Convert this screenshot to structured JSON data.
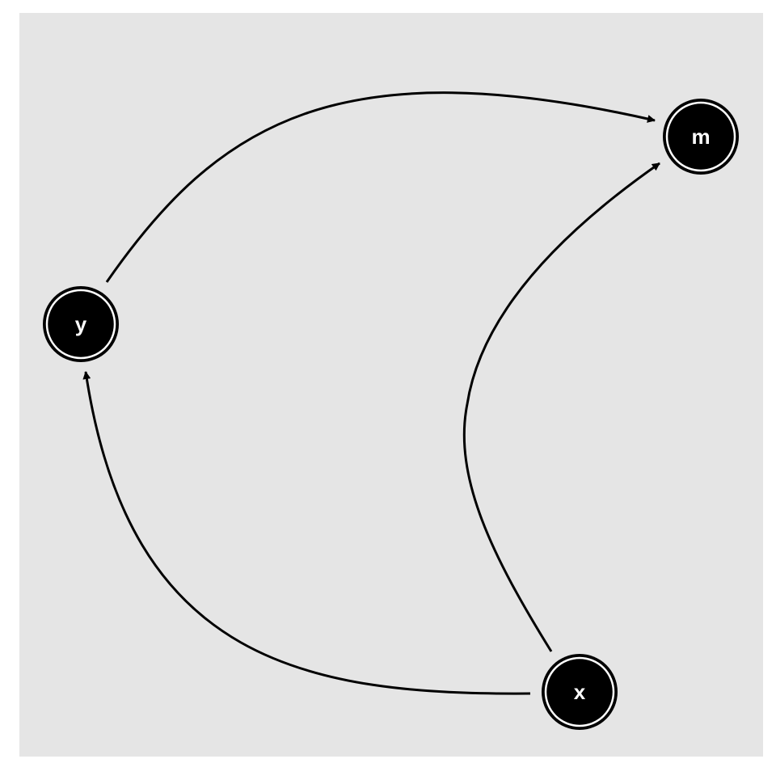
{
  "diagram": {
    "background_color": "#e5e5e5",
    "node_fill": "#000000",
    "node_ring": "#ffffff",
    "label_color": "#ffffff",
    "edge_color": "#000000",
    "nodes": [
      {
        "id": "y",
        "label": "y"
      },
      {
        "id": "m",
        "label": "m"
      },
      {
        "id": "x",
        "label": "x"
      }
    ],
    "edges": [
      {
        "from": "y",
        "to": "m"
      },
      {
        "from": "x",
        "to": "m"
      },
      {
        "from": "x",
        "to": "y"
      }
    ]
  }
}
